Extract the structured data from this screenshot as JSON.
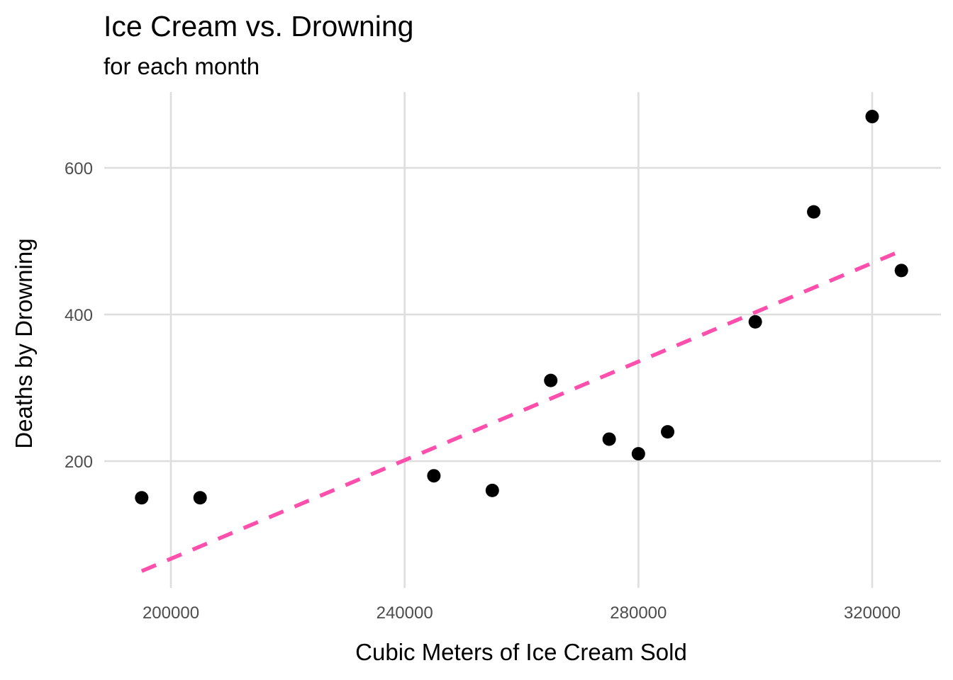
{
  "chart_data": {
    "type": "scatter",
    "title": "Ice Cream vs. Drowning",
    "subtitle": "for each month",
    "xlabel": "Cubic Meters of Ice Cream Sold",
    "ylabel": "Deaths by Drowning",
    "xlim": [
      190000,
      330000
    ],
    "ylim": [
      30,
      700
    ],
    "x_ticks": [
      200000,
      240000,
      280000,
      320000
    ],
    "x_tick_labels": [
      "200000",
      "240000",
      "280000",
      "320000"
    ],
    "y_ticks": [
      200,
      400,
      600
    ],
    "y_tick_labels": [
      "200",
      "400",
      "600"
    ],
    "grid": true,
    "legend": "none",
    "point_color": "#000000",
    "trend_color": "#ff4fad",
    "points": [
      {
        "x": 195000,
        "y": 150
      },
      {
        "x": 205000,
        "y": 150
      },
      {
        "x": 245000,
        "y": 180
      },
      {
        "x": 255000,
        "y": 160
      },
      {
        "x": 265000,
        "y": 310
      },
      {
        "x": 275000,
        "y": 230
      },
      {
        "x": 280000,
        "y": 210
      },
      {
        "x": 285000,
        "y": 240
      },
      {
        "x": 300000,
        "y": 390
      },
      {
        "x": 310000,
        "y": 540
      },
      {
        "x": 320000,
        "y": 670
      },
      {
        "x": 325000,
        "y": 460
      }
    ],
    "trend_line": {
      "style": "dashed",
      "x": [
        195000,
        325000
      ],
      "y": [
        50,
        487
      ]
    }
  }
}
